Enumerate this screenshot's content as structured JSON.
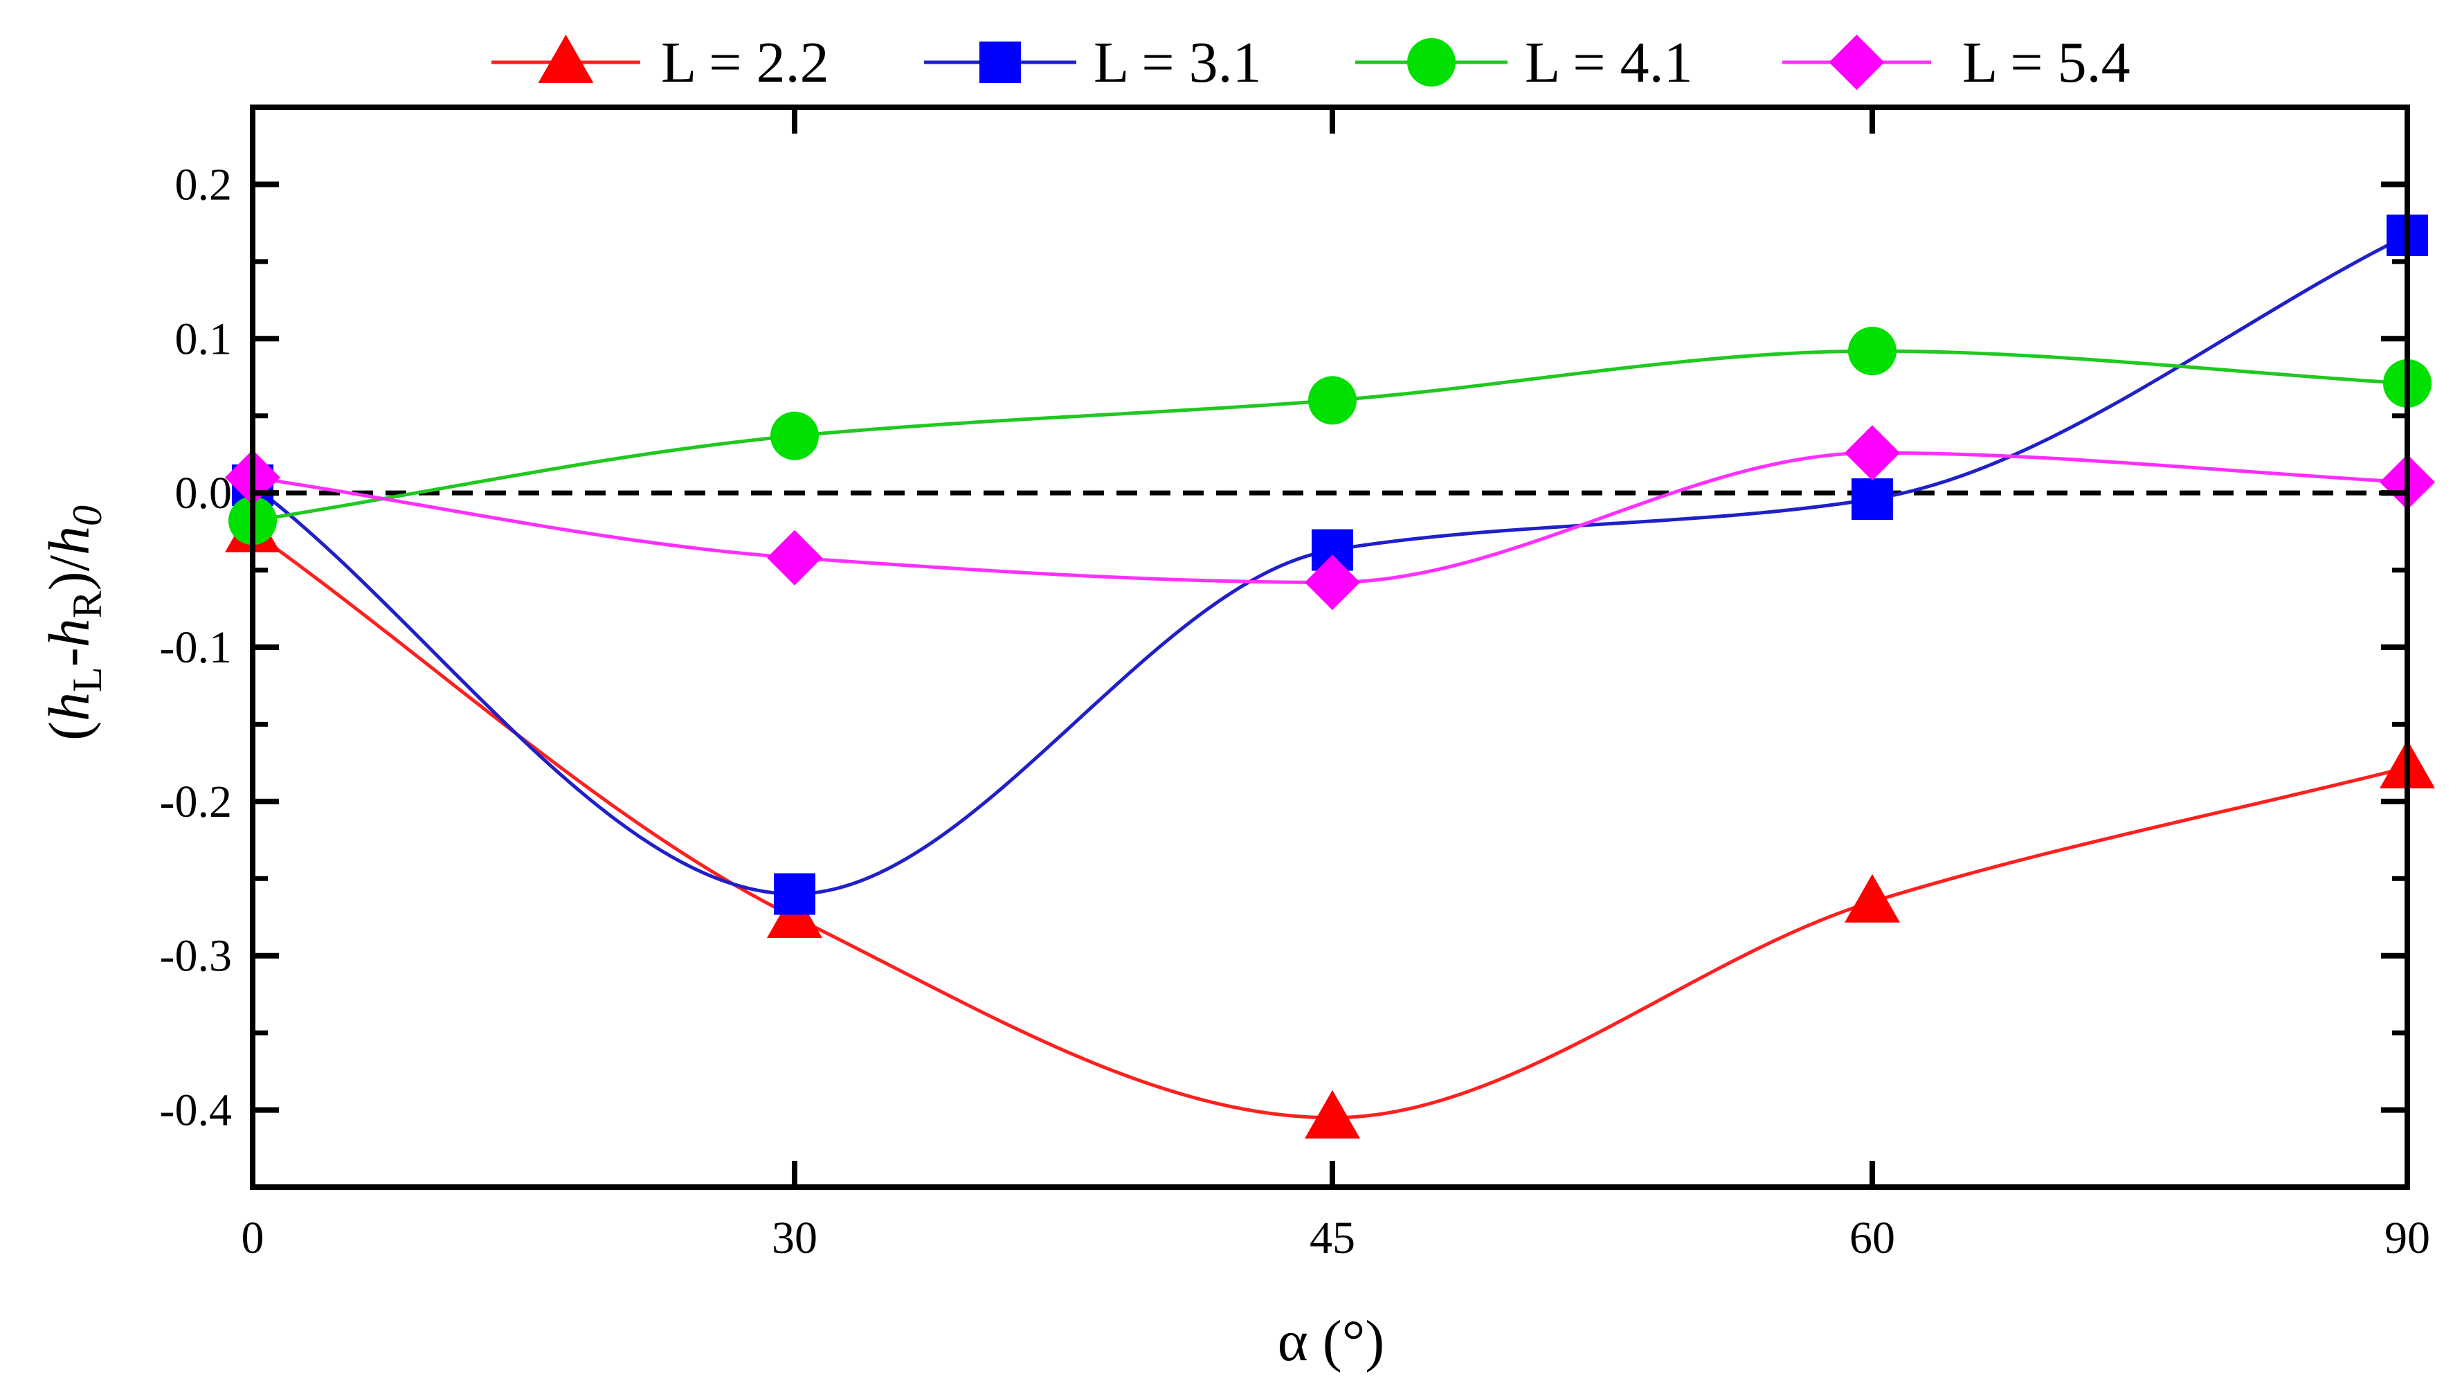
{
  "chart_data": {
    "type": "line",
    "title": "",
    "xlabel": "α (°)",
    "ylabel": {
      "parts": [
        "(",
        "h",
        "L",
        "-",
        "h",
        "R",
        ")/",
        "h",
        "0"
      ]
    },
    "x": [
      0,
      30,
      45,
      60,
      90
    ],
    "x_tick_labels": [
      "0",
      "30",
      "45",
      "60",
      "90"
    ],
    "y_ticks": [
      0.2,
      0.1,
      0.0,
      -0.1,
      -0.2,
      -0.3,
      -0.4
    ],
    "y_tick_labels": [
      "0.2",
      "0.1",
      "0.0",
      "-0.1",
      "-0.2",
      "-0.3",
      "-0.4"
    ],
    "ylim": [
      -0.45,
      0.25
    ],
    "reference_line": 0.0,
    "legend_position": "top",
    "series": [
      {
        "name": "L = 2.2",
        "marker": "triangle",
        "color": "#ff0000",
        "line_color": "#ff2020",
        "values": [
          -0.025,
          -0.275,
          -0.405,
          -0.265,
          -0.178
        ]
      },
      {
        "name": "L = 3.1",
        "marker": "square",
        "color": "#0000ff",
        "line_color": "#2020c8",
        "values": [
          0.005,
          -0.26,
          -0.037,
          -0.004,
          0.167
        ]
      },
      {
        "name": "L = 4.1",
        "marker": "circle",
        "color": "#00e000",
        "line_color": "#20c820",
        "values": [
          -0.018,
          0.037,
          0.06,
          0.092,
          0.071
        ]
      },
      {
        "name": "L = 5.4",
        "marker": "diamond",
        "color": "#ff00ff",
        "line_color": "#ff30ff",
        "values": [
          0.01,
          -0.042,
          -0.058,
          0.026,
          0.007
        ]
      }
    ]
  }
}
